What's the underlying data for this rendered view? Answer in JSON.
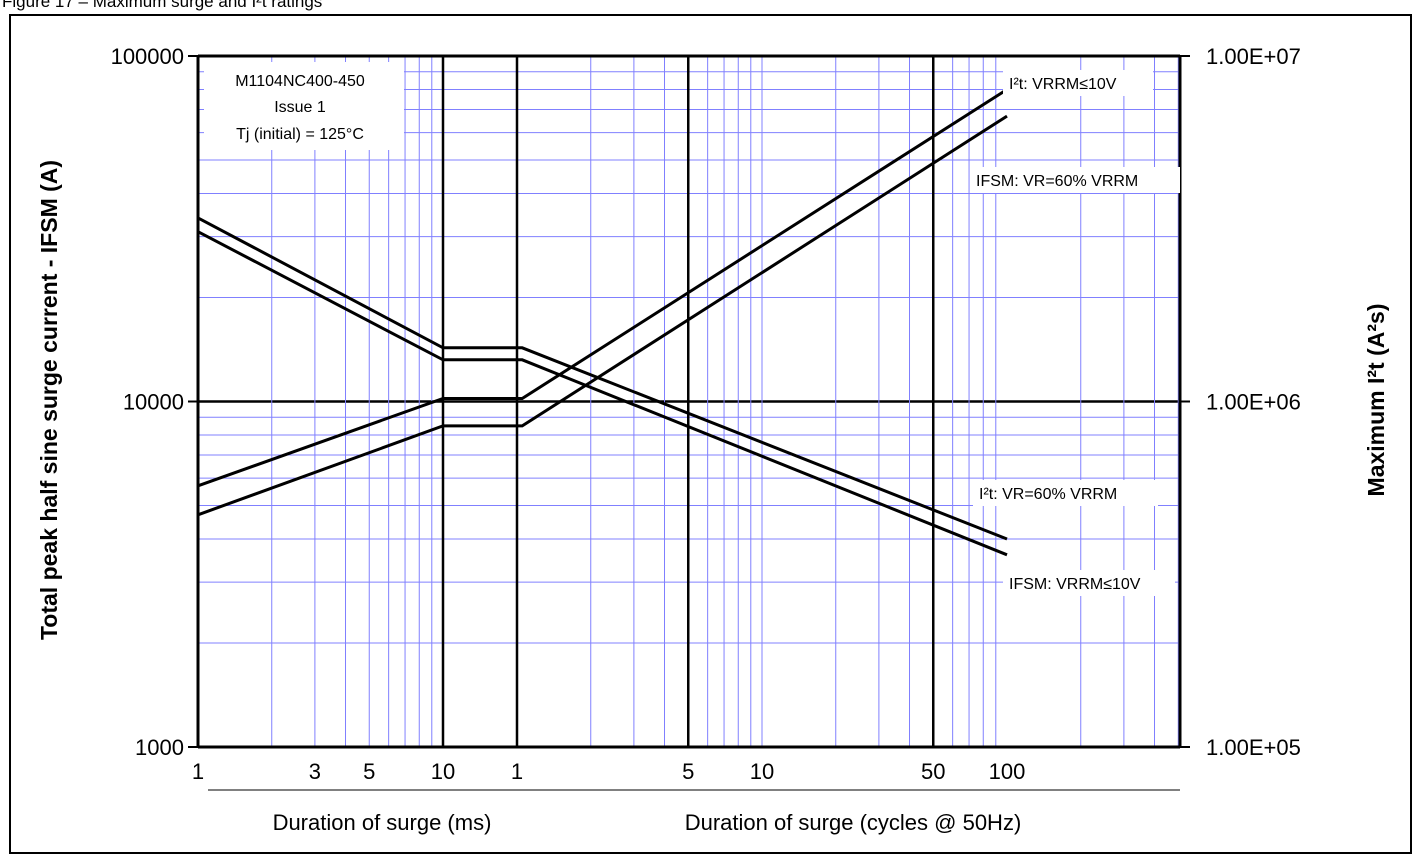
{
  "figure_caption": "Figure 17 – Maximum surge and I²t ratings",
  "chart_data": {
    "type": "line",
    "x_scale": "log",
    "y_scale": "log",
    "grid": true,
    "x_segments": [
      {
        "name": "ms",
        "label": "Duration of surge (ms)",
        "range": [
          1,
          10
        ],
        "ticks": [
          "1",
          "3",
          "5",
          "10"
        ]
      },
      {
        "name": "cycles",
        "label": "Duration of surge (cycles @ 50Hz)",
        "range": [
          1,
          100
        ],
        "ticks": [
          "1",
          "5",
          "10",
          "50",
          "100"
        ]
      }
    ],
    "y_left": {
      "label": "Total peak half sine surge current - IFSM (A)",
      "range": [
        1000,
        100000
      ],
      "ticks": [
        "1000",
        "10000",
        "100000"
      ]
    },
    "y_right": {
      "label": "Maximum I²t (A²s)",
      "range": [
        100000,
        10000000
      ],
      "ticks": [
        "1.00E+05",
        "1.00E+06",
        "1.00E+07"
      ]
    },
    "info_box": [
      "M1104NC400-450",
      "Issue 1",
      "Tj (initial) = 125°C"
    ],
    "series": [
      {
        "name": "I²t: VRRM≤10V",
        "axis": "right",
        "ms": {
          "x": [
            1,
            10
          ],
          "y": [
            570000,
            1020000
          ]
        },
        "cycles": {
          "x": [
            1,
            1.05,
            100
          ],
          "y": [
            1020000,
            1020000,
            8000000
          ]
        }
      },
      {
        "name": "IFSM: VR=60% VRRM",
        "axis": "left",
        "ms": {
          "x": [
            1,
            10
          ],
          "y": [
            31000,
            13200
          ]
        },
        "cycles": {
          "x": [
            1,
            1.05,
            100
          ],
          "y": [
            13200,
            13200,
            3600
          ]
        }
      },
      {
        "name": "I²t: VR=60% VRRM",
        "axis": "right",
        "ms": {
          "x": [
            1,
            10
          ],
          "y": [
            470000,
            850000
          ]
        },
        "cycles": {
          "x": [
            1,
            1.05,
            100
          ],
          "y": [
            850000,
            850000,
            6700000
          ]
        }
      },
      {
        "name": "IFSM: VRRM≤10V",
        "axis": "left",
        "ms": {
          "x": [
            1,
            10
          ],
          "y": [
            34000,
            14300
          ]
        },
        "cycles": {
          "x": [
            1,
            1.05,
            100
          ],
          "y": [
            14300,
            14300,
            4000
          ]
        }
      }
    ],
    "line_color": "#000000",
    "grid_color": "#8080ff"
  }
}
